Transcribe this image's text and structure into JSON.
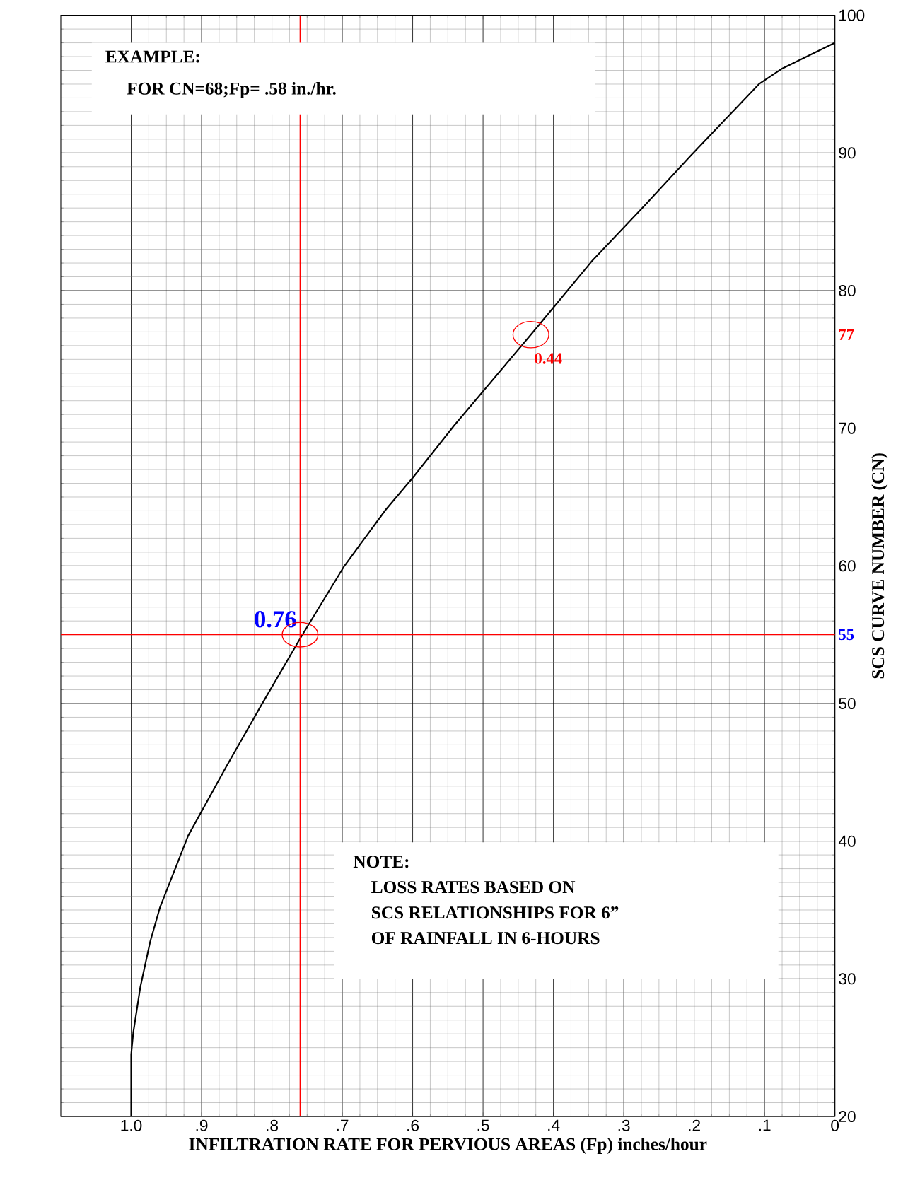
{
  "chart_data": {
    "type": "line",
    "xlabel": "INFILTRATION RATE FOR PERVIOUS AREAS (Fp)  inches/hour",
    "ylabel": "SCS CURVE NUMBER (CN)",
    "x": [
      1.0,
      1.0,
      0.997,
      0.987,
      0.973,
      0.959,
      0.919,
      0.865,
      0.816,
      0.759,
      0.697,
      0.638,
      0.6,
      0.541,
      0.432,
      0.346,
      0.27,
      0.205,
      0.108,
      0.076,
      0.0
    ],
    "series": [
      {
        "color": "#000000",
        "values": [
          20,
          24.5,
          26.1,
          29.4,
          32.7,
          35.2,
          40.4,
          45.4,
          49.8,
          54.8,
          60.0,
          64.1,
          66.4,
          70.2,
          76.8,
          82.1,
          86.2,
          89.8,
          95.0,
          96.1,
          98.0
        ]
      }
    ],
    "xlim": [
      1.1,
      0
    ],
    "xticks": [
      {
        "value": 1.0,
        "label": "1.0"
      },
      {
        "value": 0.9,
        "label": ".9"
      },
      {
        "value": 0.8,
        "label": ".8"
      },
      {
        "value": 0.7,
        "label": ".7"
      },
      {
        "value": 0.6,
        "label": ".6"
      },
      {
        "value": 0.5,
        "label": ".5"
      },
      {
        "value": 0.4,
        "label": ".4"
      },
      {
        "value": 0.3,
        "label": ".3"
      },
      {
        "value": 0.2,
        "label": ".2"
      },
      {
        "value": 0.1,
        "label": ".1"
      },
      0
    ],
    "ylim": [
      20,
      100
    ],
    "yticks": [
      20,
      30,
      40,
      50,
      60,
      70,
      80,
      90,
      100
    ],
    "grid": true,
    "ref_lines": [
      {
        "axis": "y",
        "value": 55,
        "label": "55",
        "color": "#ff0000"
      },
      {
        "axis": "x",
        "value": 0.76,
        "label": "0.76",
        "color": "#ff0000"
      }
    ],
    "annotations": [
      "EXAMPLE:",
      "FOR CN=68;Fp= .58 in./hr.",
      "NOTE:",
      "LOSS RATES BASED ON",
      "SCS RELATIONSHIPS FOR 6”",
      "OF RAINFALL IN 6-HOURS",
      "77",
      {
        "text": "0.44",
        "x": 0.432,
        "y": 76.8
      }
    ]
  }
}
